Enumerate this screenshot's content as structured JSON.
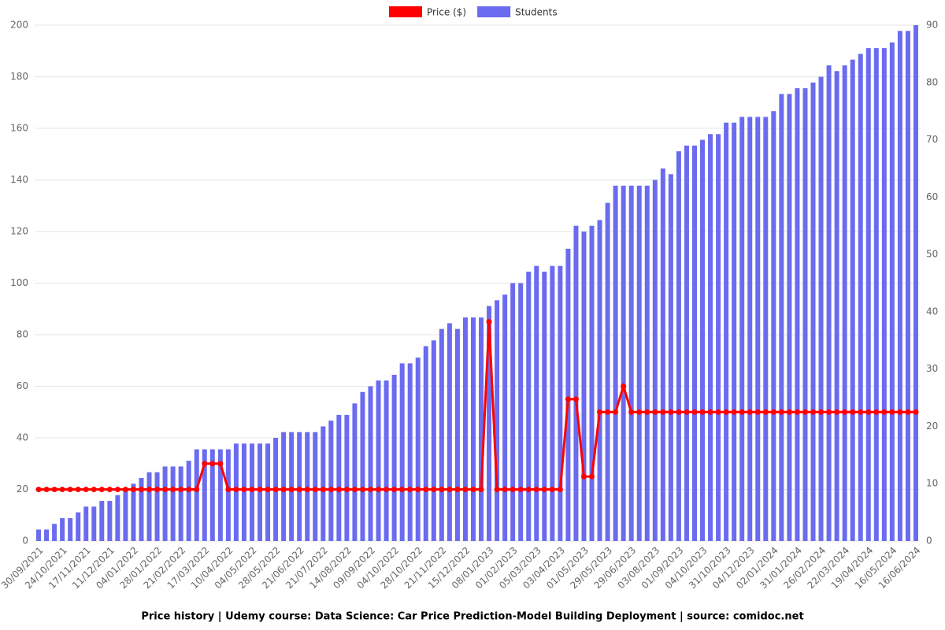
{
  "chart_data": {
    "type": "bar",
    "title": "Price history | Udemy course: Data Science: Car Price Prediction-Model Building Deployment | source: comidoc.net",
    "categories": [
      "30/09/2021",
      null,
      null,
      "24/10/2021",
      null,
      null,
      "17/11/2021",
      null,
      null,
      "11/12/2021",
      null,
      null,
      "04/01/2022",
      null,
      null,
      "28/01/2022",
      null,
      null,
      "21/02/2022",
      null,
      null,
      "17/03/2022",
      null,
      null,
      "10/04/2022",
      null,
      null,
      "04/05/2022",
      null,
      null,
      "28/05/2022",
      null,
      null,
      "21/06/2022",
      null,
      null,
      "21/07/2022",
      null,
      null,
      "14/08/2022",
      null,
      null,
      "09/09/2022",
      null,
      null,
      "04/10/2022",
      null,
      null,
      "28/10/2022",
      null,
      null,
      "21/11/2022",
      null,
      null,
      "15/12/2022",
      null,
      null,
      "08/01/2023",
      null,
      null,
      "01/02/2023",
      null,
      null,
      "05/03/2023",
      null,
      null,
      "03/04/2023",
      null,
      null,
      "01/05/2023",
      null,
      null,
      "29/05/2023",
      null,
      null,
      "29/06/2023",
      null,
      null,
      "03/08/2023",
      null,
      null,
      "01/09/2023",
      null,
      null,
      "04/10/2023",
      null,
      null,
      "31/10/2023",
      null,
      null,
      "04/12/2023",
      null,
      null,
      "02/01/2024",
      null,
      null,
      "31/01/2024",
      null,
      null,
      "26/02/2024",
      null,
      null,
      "22/03/2024",
      null,
      null,
      "19/04/2024",
      null,
      null,
      "16/05/2024",
      null,
      null,
      "16/06/2024"
    ],
    "series": [
      {
        "name": "Price ($)",
        "type": "line",
        "color": "#ff0000",
        "values": [
          20,
          20,
          20,
          20,
          20,
          20,
          20,
          20,
          20,
          20,
          20,
          20,
          20,
          20,
          20,
          20,
          20,
          20,
          20,
          20,
          20,
          30,
          30,
          30,
          20,
          20,
          20,
          20,
          20,
          20,
          20,
          20,
          20,
          20,
          20,
          20,
          20,
          20,
          20,
          20,
          20,
          20,
          20,
          20,
          20,
          20,
          20,
          20,
          20,
          20,
          20,
          20,
          20,
          20,
          20,
          20,
          20,
          85,
          20,
          20,
          20,
          20,
          20,
          20,
          20,
          20,
          20,
          55,
          55,
          25,
          25,
          50,
          50,
          50,
          60,
          50,
          50,
          50,
          50,
          50,
          50,
          50,
          50,
          50,
          50,
          50,
          50,
          50,
          50,
          50,
          50,
          50,
          50,
          50,
          50,
          50,
          50,
          50,
          50,
          50,
          50,
          50,
          50,
          50,
          50,
          50,
          50,
          50,
          50,
          50,
          50,
          50
        ]
      },
      {
        "name": "Students",
        "type": "bar",
        "axis": "y2",
        "color": "#6b6bf0",
        "values": [
          2,
          2,
          3,
          4,
          4,
          5,
          6,
          6,
          7,
          7,
          8,
          9,
          10,
          11,
          12,
          12,
          13,
          13,
          13,
          14,
          16,
          16,
          16,
          16,
          16,
          17,
          17,
          17,
          17,
          17,
          18,
          19,
          19,
          19,
          19,
          19,
          20,
          21,
          22,
          22,
          24,
          26,
          27,
          28,
          28,
          29,
          31,
          31,
          32,
          34,
          35,
          37,
          38,
          37,
          39,
          39,
          39,
          41,
          42,
          43,
          45,
          45,
          47,
          48,
          47,
          48,
          48,
          51,
          55,
          54,
          55,
          56,
          59,
          62,
          62,
          62,
          62,
          62,
          63,
          65,
          64,
          68,
          69,
          69,
          70,
          71,
          71,
          73,
          73,
          74,
          74,
          74,
          74,
          75,
          78,
          78,
          79,
          79,
          80,
          81,
          83,
          82,
          83,
          84,
          85,
          86,
          86,
          86,
          87,
          89,
          89,
          90
        ]
      }
    ],
    "ylim": [
      0,
      200
    ],
    "yticks": [
      0,
      20,
      40,
      60,
      80,
      100,
      120,
      140,
      160,
      180,
      200
    ],
    "y2lim": [
      0,
      90
    ],
    "y2ticks": [
      0,
      10,
      20,
      30,
      40,
      50,
      60,
      70,
      80,
      90
    ],
    "grid": true
  }
}
